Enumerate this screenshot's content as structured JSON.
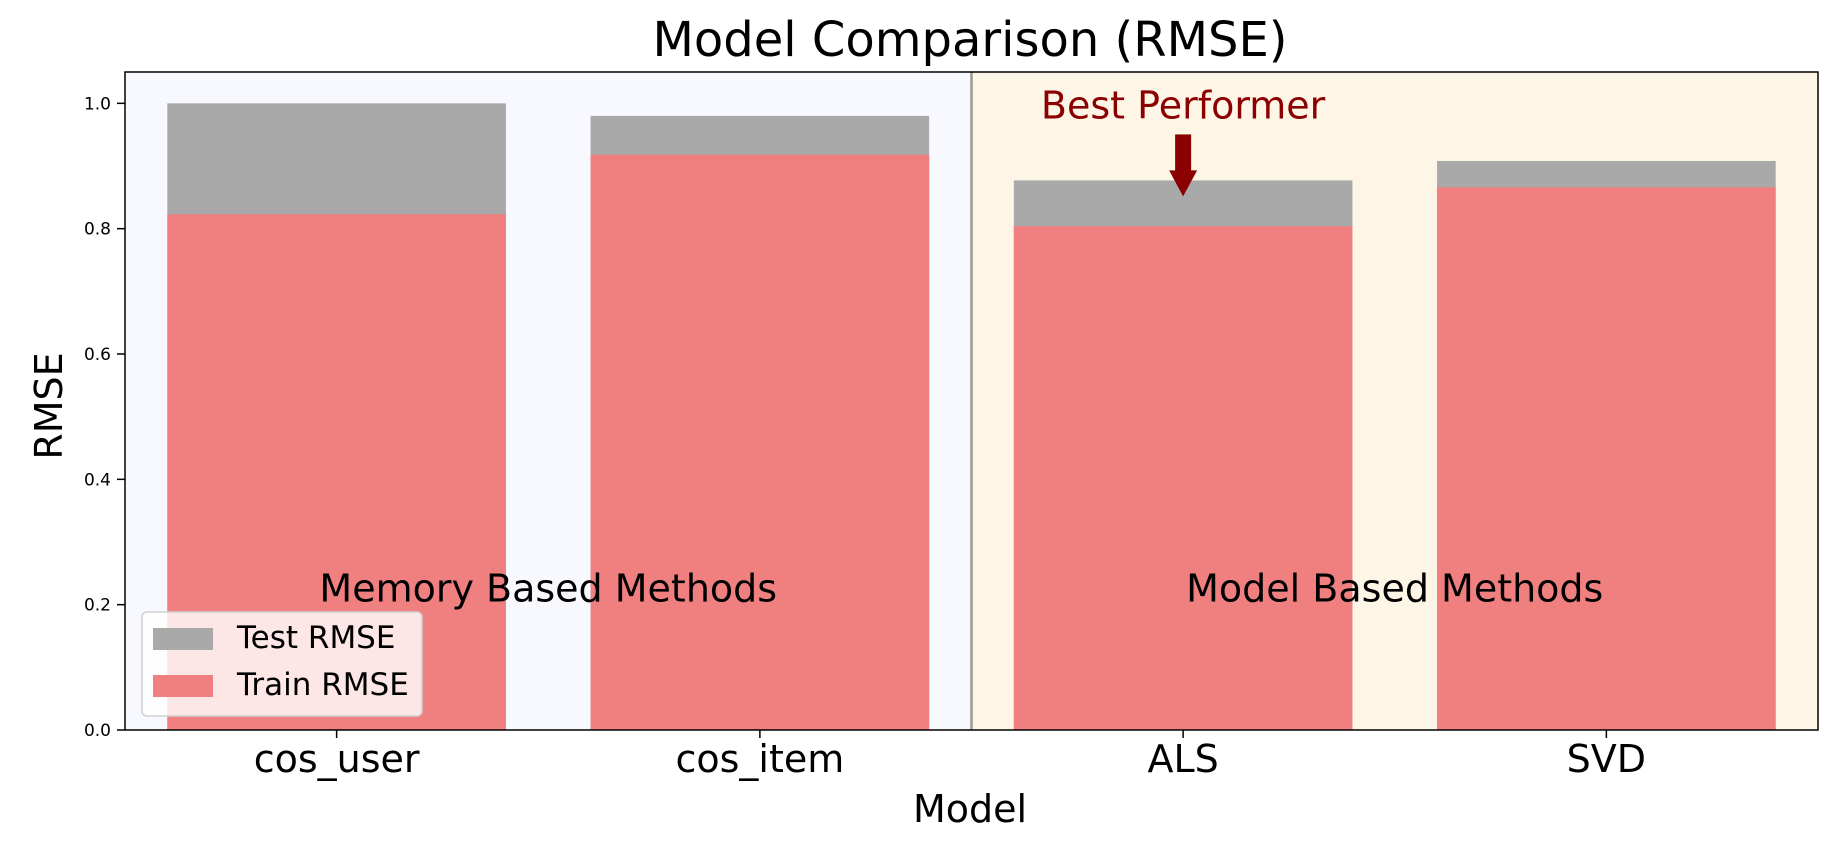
{
  "chart_data": {
    "type": "bar",
    "title": "Model Comparison (RMSE)",
    "xlabel": "Model",
    "ylabel": "RMSE",
    "categories": [
      "cos_user",
      "cos_item",
      "ALS",
      "SVD"
    ],
    "series": [
      {
        "name": "Test RMSE",
        "values": [
          1.0,
          0.98,
          0.877,
          0.908
        ],
        "color": "#a9a9a9"
      },
      {
        "name": "Train RMSE",
        "values": [
          0.823,
          0.918,
          0.804,
          0.866
        ],
        "color": "#f08080"
      }
    ],
    "ylim": [
      0,
      1.05
    ],
    "yticks": [
      "0.0",
      "0.2",
      "0.4",
      "0.6",
      "0.8",
      "1.0"
    ],
    "grid": false,
    "legend_position": "lower-left",
    "regions": [
      {
        "label": "Memory Based Methods",
        "categories": [
          "cos_user",
          "cos_item"
        ],
        "background": "#f8f8ff"
      },
      {
        "label": "Model Based Methods",
        "categories": [
          "ALS",
          "SVD"
        ],
        "background": "#fdf5e6"
      }
    ],
    "annotation": {
      "text": "Best Performer",
      "category": "ALS",
      "color": "#8b0000"
    }
  }
}
